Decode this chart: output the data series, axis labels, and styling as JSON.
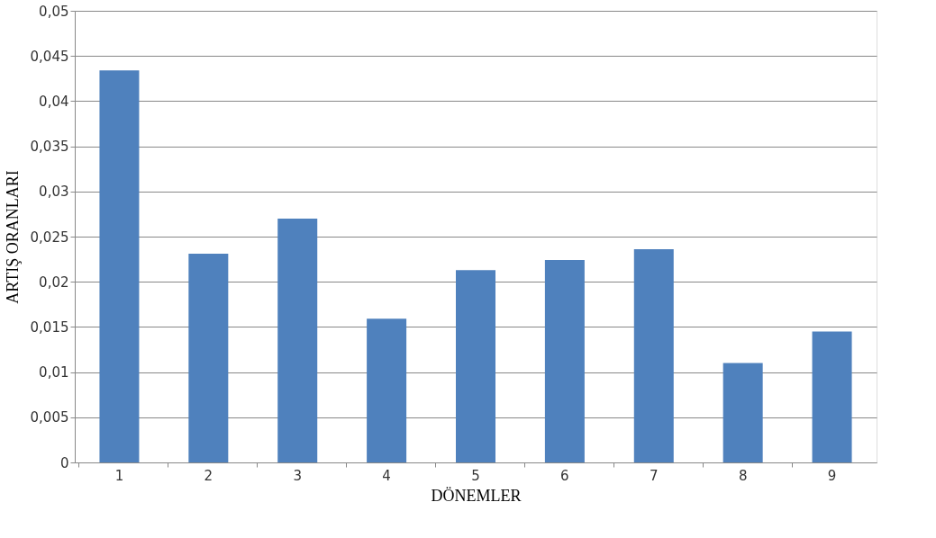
{
  "chart_data": {
    "type": "bar",
    "xlabel": "DÖNEMLER",
    "ylabel": "ARTIŞ ORANLARI",
    "categories": [
      "1",
      "2",
      "3",
      "4",
      "5",
      "6",
      "7",
      "8",
      "9"
    ],
    "values": [
      0.0434,
      0.0231,
      0.027,
      0.0159,
      0.0213,
      0.0224,
      0.0236,
      0.011,
      0.0145
    ],
    "color": "#4f81bd",
    "ylim": [
      0,
      0.05
    ],
    "yticks": [
      {
        "value": 0,
        "label": "0"
      },
      {
        "value": 0.005,
        "label": "0,005"
      },
      {
        "value": 0.01,
        "label": "0,01"
      },
      {
        "value": 0.015,
        "label": "0,015"
      },
      {
        "value": 0.02,
        "label": "0,02"
      },
      {
        "value": 0.025,
        "label": "0,025"
      },
      {
        "value": 0.03,
        "label": "0,03"
      },
      {
        "value": 0.035,
        "label": "0,035"
      },
      {
        "value": 0.04,
        "label": "0,04"
      },
      {
        "value": 0.045,
        "label": "0,045"
      },
      {
        "value": 0.05,
        "label": "0,05"
      }
    ],
    "grid": "y"
  }
}
